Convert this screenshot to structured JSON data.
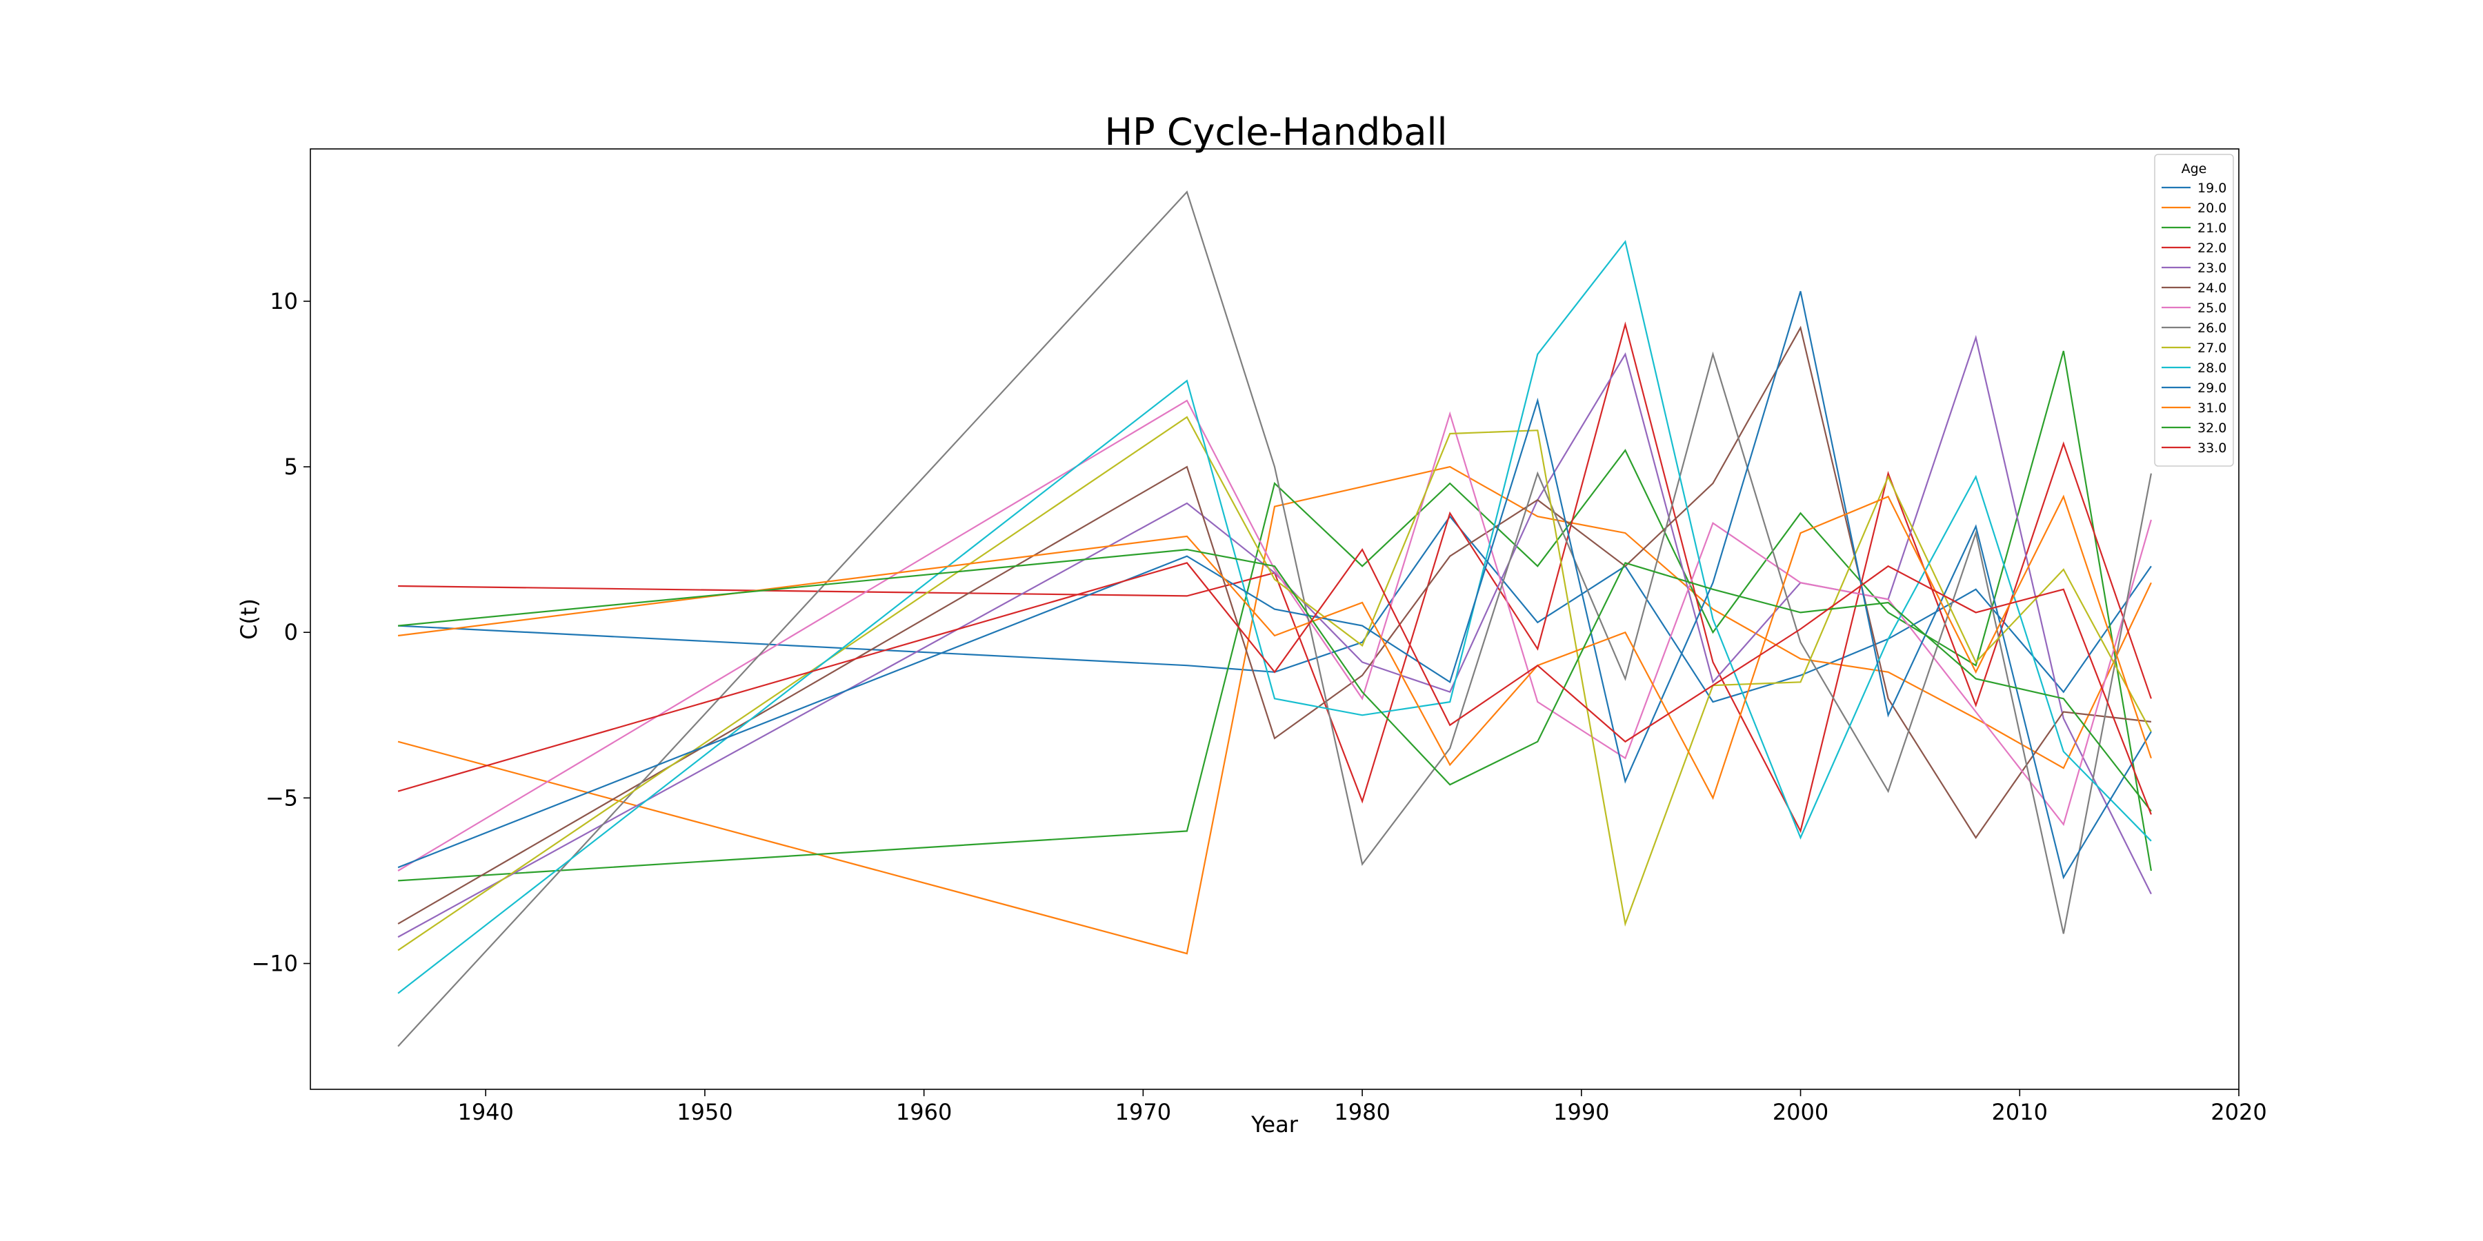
{
  "chart_data": {
    "type": "line",
    "title": "HP Cycle-Handball",
    "xlabel": "Year",
    "ylabel": "C(t)",
    "xlim": [
      1932,
      2020
    ],
    "ylim": [
      -13.8,
      14.6
    ],
    "xticks": [
      1940,
      1950,
      1960,
      1970,
      1980,
      1990,
      2000,
      2010,
      2020
    ],
    "yticks": [
      -10,
      -5,
      0,
      5,
      10
    ],
    "grid": false,
    "legend": {
      "title": "Age",
      "position": "top-right"
    },
    "x": [
      1936,
      1972,
      1976,
      1980,
      1984,
      1988,
      1992,
      1996,
      2000,
      2004,
      2008,
      2012,
      2016
    ],
    "series": [
      {
        "name": "19.0",
        "color": "#1f77b4",
        "values": [
          0.2,
          -1.0,
          -1.2,
          -0.3,
          3.5,
          0.3,
          2.0,
          -2.1,
          -1.3,
          -0.2,
          1.3,
          -1.8,
          2.0
        ]
      },
      {
        "name": "20.0",
        "color": "#ff7f0e",
        "values": [
          -3.3,
          -9.7,
          3.8,
          4.4,
          5.0,
          3.5,
          3.0,
          0.7,
          -0.8,
          -1.2,
          -2.6,
          -4.1,
          1.5
        ]
      },
      {
        "name": "21.0",
        "color": "#2ca02c",
        "values": [
          -7.5,
          -6.0,
          4.5,
          2.0,
          4.5,
          2.0,
          5.5,
          0.0,
          3.6,
          0.6,
          -1.0,
          8.5,
          -7.2
        ]
      },
      {
        "name": "22.0",
        "color": "#d62728",
        "values": [
          1.4,
          1.1,
          1.8,
          -5.1,
          3.6,
          -0.5,
          9.3,
          -0.9,
          -6.0,
          4.8,
          -2.2,
          5.7,
          -2.0
        ]
      },
      {
        "name": "23.0",
        "color": "#9467bd",
        "values": [
          -9.2,
          3.9,
          1.8,
          -0.9,
          -1.8,
          4.0,
          8.4,
          -1.5,
          1.5,
          1.0,
          8.9,
          -2.6,
          -7.9
        ]
      },
      {
        "name": "24.0",
        "color": "#8c564b",
        "values": [
          -8.8,
          5.0,
          -3.2,
          -1.3,
          2.3,
          4.0,
          2.0,
          4.5,
          9.2,
          -2.0,
          -6.2,
          -2.4,
          -2.7
        ]
      },
      {
        "name": "25.0",
        "color": "#e377c2",
        "values": [
          -7.2,
          7.0,
          1.9,
          -2.0,
          6.6,
          -2.1,
          -3.8,
          3.3,
          1.5,
          1.0,
          -2.4,
          -5.8,
          3.4
        ]
      },
      {
        "name": "26.0",
        "color": "#7f7f7f",
        "values": [
          -12.5,
          13.3,
          5.0,
          -7.0,
          -3.5,
          4.8,
          -1.4,
          8.4,
          -0.3,
          -4.8,
          3.0,
          -9.1,
          4.8
        ]
      },
      {
        "name": "27.0",
        "color": "#bcbd22",
        "values": [
          -9.6,
          6.5,
          1.6,
          -0.4,
          6.0,
          6.1,
          -8.8,
          -1.6,
          -1.5,
          4.7,
          -0.9,
          1.9,
          -3.0
        ]
      },
      {
        "name": "28.0",
        "color": "#17becf",
        "values": [
          -10.9,
          7.6,
          -2.0,
          -2.5,
          -2.1,
          8.4,
          11.8,
          0.4,
          -6.2,
          -0.2,
          4.7,
          -3.6,
          -6.3
        ]
      },
      {
        "name": "29.0",
        "color": "#1f77b4",
        "values": [
          -7.1,
          2.3,
          0.7,
          0.2,
          -1.5,
          7.0,
          -4.5,
          1.5,
          10.3,
          -2.5,
          3.2,
          -7.4,
          -3.0
        ]
      },
      {
        "name": "31.0",
        "color": "#ff7f0e",
        "values": [
          -0.1,
          2.9,
          -0.1,
          0.9,
          -4.0,
          -1.0,
          0.0,
          -5.0,
          3.0,
          4.1,
          -1.2,
          4.1,
          -3.8
        ]
      },
      {
        "name": "32.0",
        "color": "#2ca02c",
        "values": [
          0.2,
          2.5,
          2.0,
          -1.8,
          -4.6,
          -3.3,
          2.1,
          1.3,
          0.6,
          0.9,
          -1.4,
          -2.0,
          -5.4
        ]
      },
      {
        "name": "33.0",
        "color": "#d62728",
        "values": [
          -4.8,
          2.1,
          -1.2,
          2.5,
          -2.8,
          -1.0,
          -3.3,
          -1.6,
          0.1,
          2.0,
          0.6,
          1.3,
          -5.5
        ]
      }
    ]
  }
}
